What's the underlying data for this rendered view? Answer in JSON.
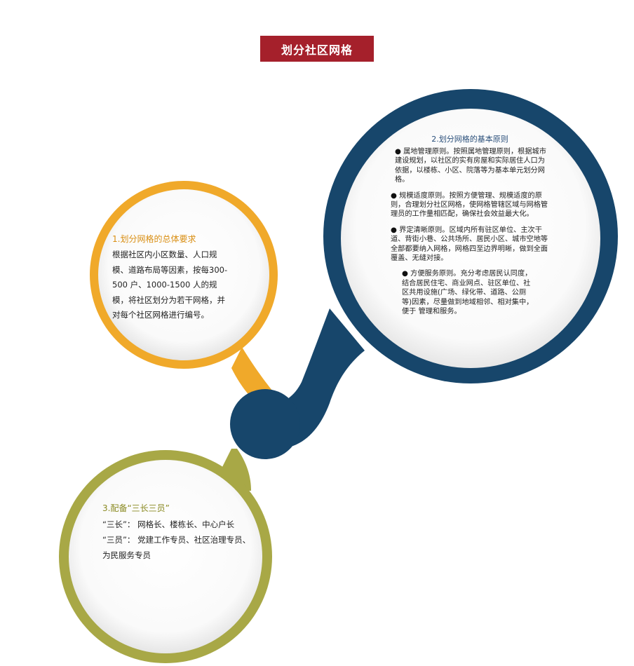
{
  "title": "划分社区网格",
  "colors": {
    "title_bg": "#a5202b",
    "orange": "#f0a92a",
    "navy": "#17466b",
    "olive": "#a8a846"
  },
  "section1": {
    "title": "1.划分网格的总体要求",
    "text": "根据社区内小区数量、人口规模、道路布局等因素，按每300-500 户、1000-1500 人的规模，将社区划分为若干网格，并对每个社区网格进行编号。"
  },
  "section2": {
    "title": "2.划分网格的基本原则",
    "items": [
      "属地管理原则。按照属地管理原则，根据城市建设规划，以社区的实有房屋和实际居住人口为依据，以楼栋、小区、院落等为基本单元划分网格。",
      "规模适度原则。按照方便管理、规模适度的原则，合理划分社区网格，使网格管辖区域与网格管理员的工作量相匹配，确保社会效益最大化。",
      "界定清晰原则。区域内所有驻区单位、主次干道、背街小巷、公共场所、居民小区、城市空地等全部都要纳入网格，网格四至边界明晰，做到全面覆盖、无缝对接。",
      "方便服务原则。充分考虑居民认同度，结合居民住宅、商业网点、驻区单位、社区共用设施(广场、绿化带、道路、公厕等)因素，尽量做到地域相邻、相对集中，便于 管理和服务。"
    ]
  },
  "section3": {
    "title": "3.配备“三长三员”",
    "line1": "“三长”：  网格长、楼栋长、中心户长",
    "line2": "“三员”：  党建工作专员、社区治理专员、为民服务专员"
  }
}
